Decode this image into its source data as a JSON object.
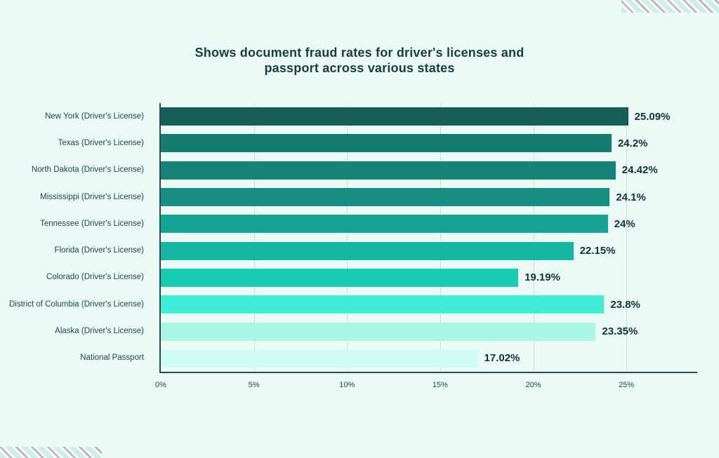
{
  "page": {
    "background_color": "#ecfaf5"
  },
  "title_lines": [
    "Shows document fraud rates for driver's licenses and",
    "passport across various states"
  ],
  "chart_data": {
    "type": "bar",
    "orientation": "horizontal",
    "title": "Shows document fraud rates for driver's licenses and passport across various states",
    "categories": [
      "New York (Driver's License)",
      "Texas (Driver's License)",
      "North Dakota (Driver's License)",
      "Mississippi (Driver's License)",
      "Tennessee (Driver's License)",
      "Florida (Driver's License)",
      "Colorado (Driver's License)",
      "District of Columbia (Driver's License)",
      "Alaska (Driver's License)",
      "National Passport"
    ],
    "values": [
      25.09,
      24.2,
      24.42,
      24.1,
      24,
      22.15,
      19.19,
      23.8,
      23.35,
      17.02
    ],
    "value_labels": [
      "25.09%",
      "24.2%",
      "24.42%",
      "24.1%",
      "24%",
      "22.15%",
      "19.19%",
      "23.8%",
      "23.35%",
      "17.02%"
    ],
    "bar_colors": [
      "#155F58",
      "#177C70",
      "#178378",
      "#178E81",
      "#16A494",
      "#15B6A2",
      "#17CDB2",
      "#40EED8",
      "#A9F5E6",
      "#D0FCF3"
    ],
    "x_ticks": [
      {
        "label": "0%",
        "value": 0
      },
      {
        "label": "5%",
        "value": 5
      },
      {
        "label": "10%",
        "value": 10
      },
      {
        "label": "15%",
        "value": 15
      },
      {
        "label": "20%",
        "value": 20
      },
      {
        "label": "25%",
        "value": 25
      }
    ],
    "xlim": [
      0,
      28.8
    ],
    "grid": true,
    "legend": false,
    "xlabel": "",
    "ylabel": "",
    "title_color": "#173e3e",
    "label_color": "#1d4745",
    "value_label_color": "#14333c",
    "axis_color": "#2b4a4d",
    "gridline_color": "#cbd9d7"
  },
  "decorations": {
    "stripe_teal": "#cdeee3",
    "stripe_lavender": "#b9b7cb",
    "stripe_background": "#ffffff"
  }
}
